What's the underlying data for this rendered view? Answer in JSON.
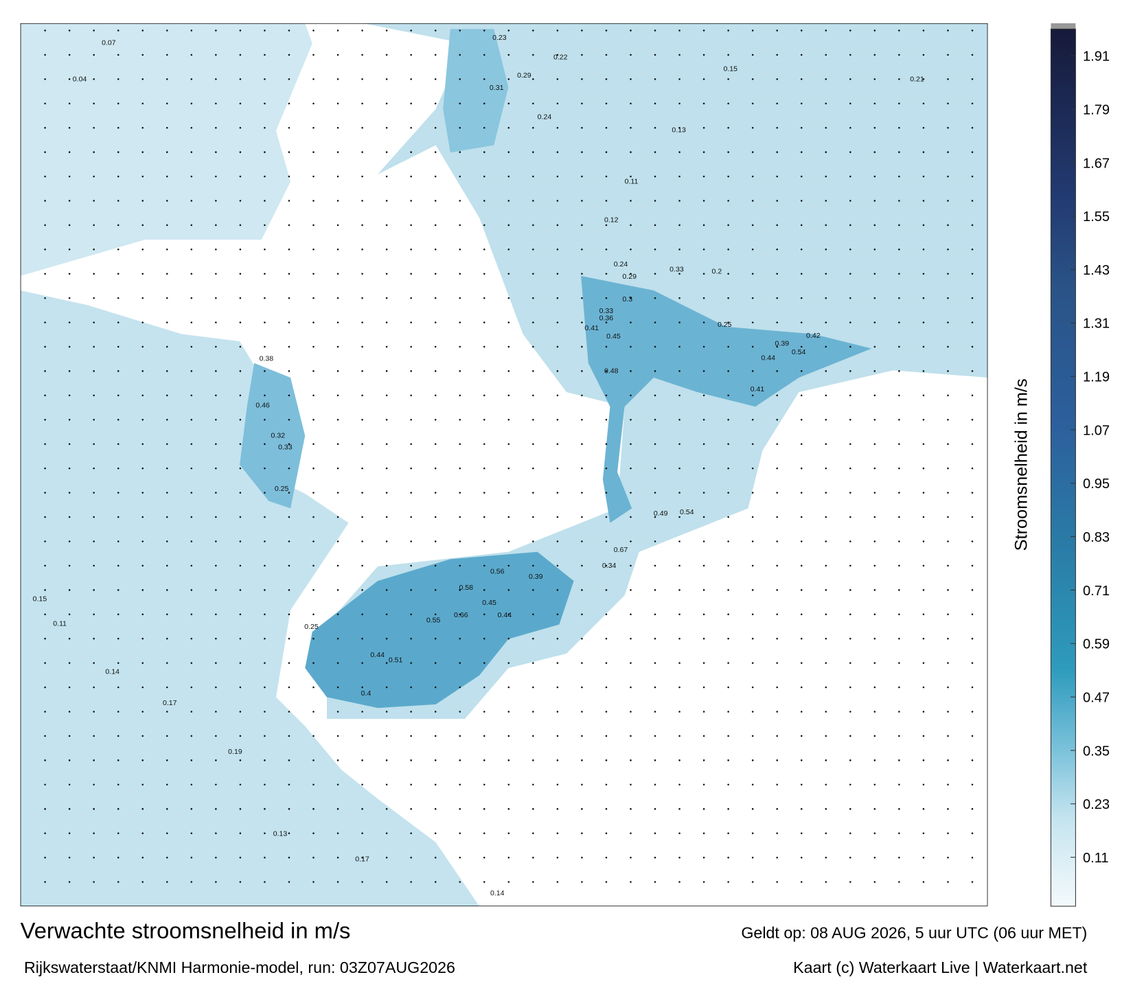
{
  "map": {
    "title": "Verwachte stroomsnelheid in m/s",
    "subtitle": "Rijkswaterstaat/KNMI Harmonie-model, run: 03Z07AUG2026",
    "valid_time": "Geldt op: 08 AUG 2026, 5 uur UTC (06 uur MET)",
    "credit": "Kaart (c) Waterkaart Live | Waterkaart.net",
    "colorbar": {
      "label": "Stroomsnelheid in m/s",
      "lim": [
        0,
        1.97
      ],
      "ticks": [
        0.11,
        0.23,
        0.35,
        0.47,
        0.59,
        0.71,
        0.83,
        0.95,
        1.07,
        1.19,
        1.31,
        1.43,
        1.55,
        1.67,
        1.79,
        1.91
      ]
    },
    "speed_labels": [
      0.67,
      0.56,
      0.58,
      0.66,
      0.55,
      0.51,
      0.44,
      0.4,
      0.39,
      0.45,
      0.44,
      0.34,
      0.49,
      0.54,
      0.48,
      0.45,
      0.41,
      0.36,
      0.33,
      0.3,
      0.29,
      0.24,
      0.39,
      0.44,
      0.42,
      0.54,
      0.41,
      0.46,
      0.38,
      0.32,
      0.25,
      0.25,
      0.33,
      0.23,
      0.29,
      0.31,
      0.24,
      0.22,
      0.21,
      0.15,
      0.07,
      0.04,
      0.15,
      0.11,
      0.14,
      0.17,
      0.19,
      0.13,
      0.17,
      0.14,
      0.13,
      0.11,
      0.12,
      0.2,
      0.25,
      0.33
    ]
  }
}
